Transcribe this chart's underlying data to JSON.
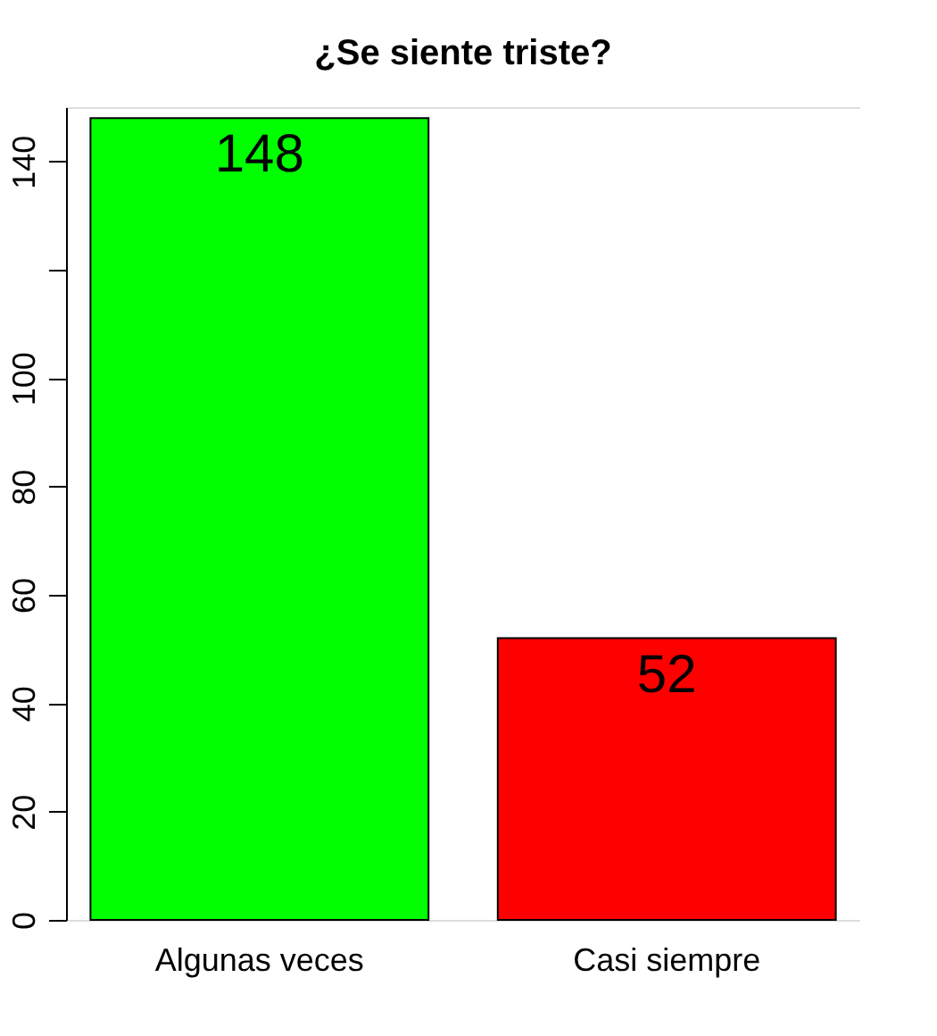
{
  "chart_data": {
    "type": "bar",
    "title": "¿Se siente triste?",
    "categories": [
      "Algunas veces",
      "Casi siempre"
    ],
    "values": [
      148,
      52
    ],
    "colors": [
      "#00ff00",
      "#ff0000"
    ],
    "ylim": [
      0,
      150
    ],
    "yticks": [
      0,
      20,
      40,
      60,
      80,
      100,
      {
        "value": 120,
        "label": null
      },
      140
    ],
    "data_labels": true
  }
}
